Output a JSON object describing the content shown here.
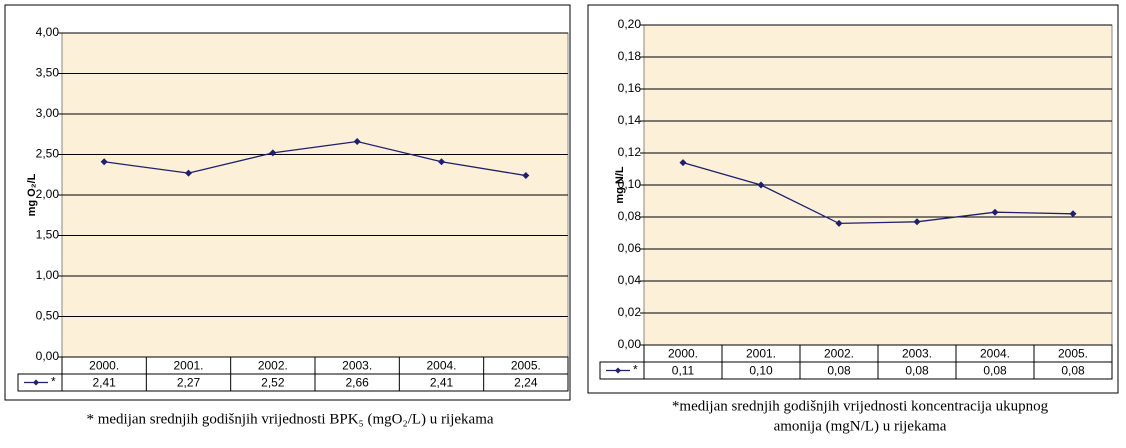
{
  "chart_data": [
    {
      "type": "line",
      "ylabel": "mg O₂/L",
      "categories": [
        "2000.",
        "2001.",
        "2002.",
        "2003.",
        "2004.",
        "2005."
      ],
      "series": [
        {
          "name": "*",
          "color": "#1f1f6e",
          "values": [
            2.41,
            2.27,
            2.52,
            2.66,
            2.41,
            2.24
          ],
          "value_labels": [
            "2,41",
            "2,27",
            "2,52",
            "2,66",
            "2,41",
            "2,24"
          ]
        }
      ],
      "ylim": [
        0,
        4
      ],
      "yticks": [
        {
          "value": 0,
          "label": "0,00"
        },
        {
          "value": 0.5,
          "label": "0,50"
        },
        {
          "value": 1,
          "label": "1,00"
        },
        {
          "value": 1.5,
          "label": "1,50"
        },
        {
          "value": 2,
          "label": "2,00"
        },
        {
          "value": 2.5,
          "label": "2,50"
        },
        {
          "value": 3,
          "label": "3,00"
        },
        {
          "value": 3.5,
          "label": "3,50"
        },
        {
          "value": 4,
          "label": "4,00"
        }
      ],
      "grid": true,
      "caption": [
        "* medijan srednjih godišnjih vrijednosti BPK₅ (mgO₂/L) u rijekama"
      ]
    },
    {
      "type": "line",
      "ylabel": "mg N/L",
      "categories": [
        "2000.",
        "2001.",
        "2002.",
        "2003.",
        "2004.",
        "2005."
      ],
      "series": [
        {
          "name": "*",
          "color": "#1f1f6e",
          "values": [
            0.114,
            0.1,
            0.076,
            0.077,
            0.083,
            0.082
          ],
          "value_labels": [
            "0,11",
            "0,10",
            "0,08",
            "0,08",
            "0,08",
            "0,08"
          ]
        }
      ],
      "ylim": [
        0,
        0.2
      ],
      "yticks": [
        {
          "value": 0,
          "label": "0,00"
        },
        {
          "value": 0.02,
          "label": "0,02"
        },
        {
          "value": 0.04,
          "label": "0,04"
        },
        {
          "value": 0.06,
          "label": "0,06"
        },
        {
          "value": 0.08,
          "label": "0,08"
        },
        {
          "value": 0.1,
          "label": "0,10"
        },
        {
          "value": 0.12,
          "label": "0,12"
        },
        {
          "value": 0.14,
          "label": "0,14"
        },
        {
          "value": 0.16,
          "label": "0,16"
        },
        {
          "value": 0.18,
          "label": "0,18"
        },
        {
          "value": 0.2,
          "label": "0,20"
        }
      ],
      "grid": true,
      "caption": [
        "*medijan srednjih godišnjih vrijednosti koncentracija ukupnog",
        "amonija (mgN/L) u rijekama"
      ]
    }
  ]
}
